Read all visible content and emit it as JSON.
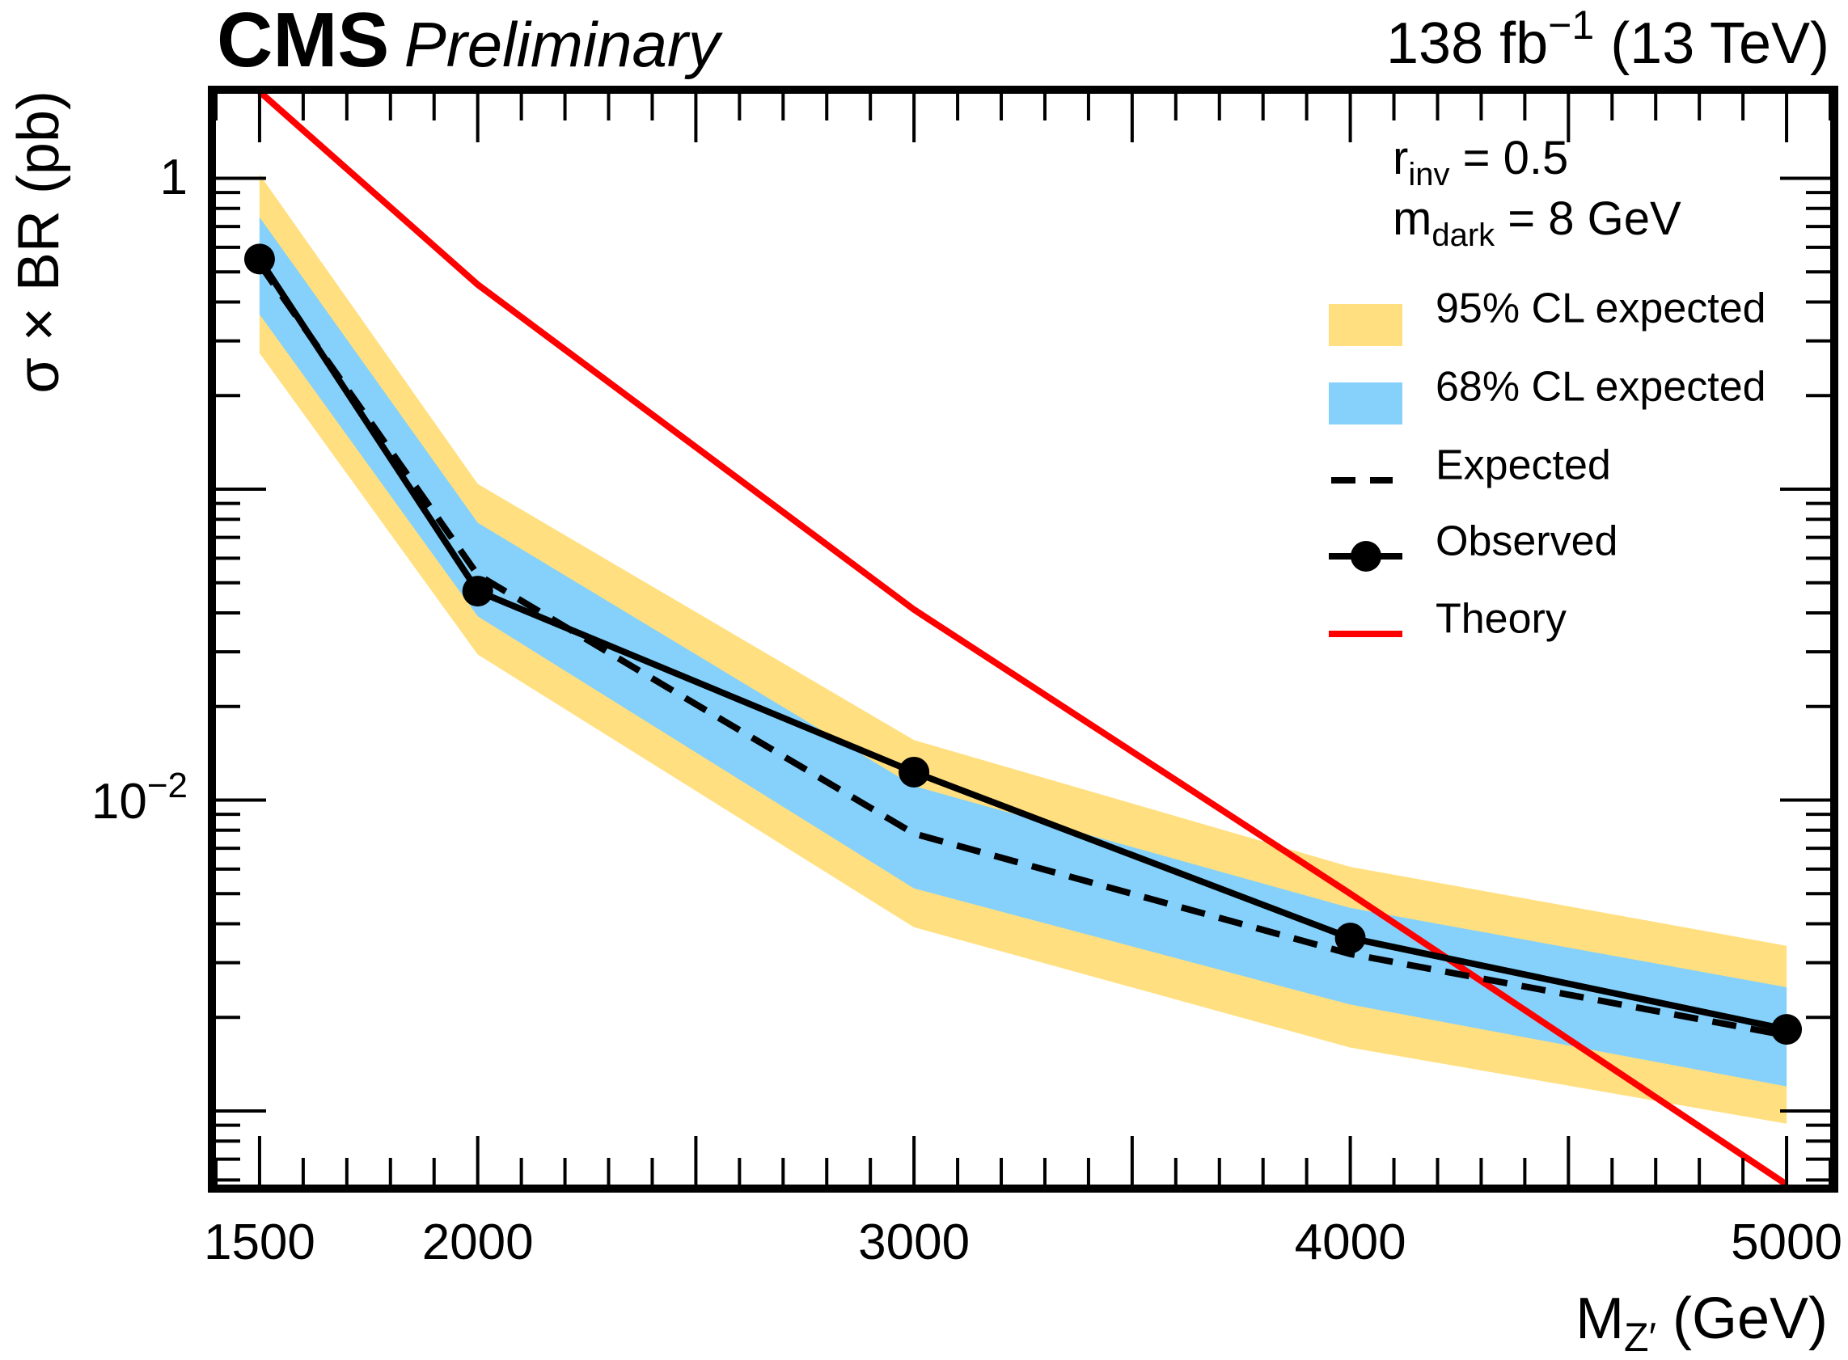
{
  "chart_data": {
    "type": "line",
    "title": "",
    "header_left": {
      "experiment": "CMS",
      "status": "Preliminary"
    },
    "header_right": {
      "lumi_value": "138 fb",
      "lumi_exponent": "−1",
      "energy": " (13 TeV)"
    },
    "xlabel": {
      "main": "M",
      "subscript": "Z′",
      "unit": " (GeV)"
    },
    "ylabel": "σ × BR (pb)",
    "xscale": "linear",
    "yscale": "log",
    "xlim": [
      1400,
      5100
    ],
    "ylim": [
      0.00058,
      1.87
    ],
    "x_ticks": [
      1500,
      2000,
      3000,
      4000,
      5000
    ],
    "x_tick_labels": [
      "1500",
      "2000",
      "3000",
      "4000",
      "5000"
    ],
    "y_tick_labels": [
      {
        "value": 1,
        "base": "1",
        "exponent": ""
      },
      {
        "value": 0.01,
        "base": "10",
        "exponent": "−2"
      }
    ],
    "grid": false,
    "annotations": [
      {
        "main": "r",
        "subscript": "inv",
        "rest": " = 0.5"
      },
      {
        "main": "m",
        "subscript": "dark",
        "rest": " = 8 GeV"
      }
    ],
    "legend_position": "top-right",
    "legend": [
      {
        "key": "band95",
        "label": "95% CL expected"
      },
      {
        "key": "band68",
        "label": "68% CL expected"
      },
      {
        "key": "expected",
        "label": "Expected"
      },
      {
        "key": "observed",
        "label": "Observed"
      },
      {
        "key": "theory",
        "label": "Theory"
      }
    ],
    "x": [
      1500,
      2000,
      3000,
      4000,
      5000
    ],
    "series": [
      {
        "name": "Observed",
        "key": "observed",
        "values": [
          0.55,
          0.047,
          0.0123,
          0.0036,
          0.00183
        ]
      },
      {
        "name": "Expected",
        "key": "expected",
        "values": [
          0.53,
          0.053,
          0.0078,
          0.0032,
          0.00175
        ]
      },
      {
        "name": "68% CL expected (upper)",
        "key": "band68_hi",
        "values": [
          0.75,
          0.078,
          0.0111,
          0.0045,
          0.0025
        ]
      },
      {
        "name": "68% CL expected (lower)",
        "key": "band68_lo",
        "values": [
          0.365,
          0.039,
          0.0052,
          0.0022,
          0.0012
        ]
      },
      {
        "name": "95% CL expected (upper)",
        "key": "band95_hi",
        "values": [
          1.03,
          0.104,
          0.0156,
          0.0061,
          0.0034
        ]
      },
      {
        "name": "95% CL expected (lower)",
        "key": "band95_lo",
        "values": [
          0.274,
          0.0294,
          0.0039,
          0.0016,
          0.00091
        ]
      },
      {
        "name": "Theory",
        "key": "theory",
        "values": [
          1.9,
          0.455,
          0.041,
          0.005,
          0.00058
        ]
      }
    ],
    "colors": {
      "band95": "#FFDF7F",
      "band68": "#85D1FB",
      "observed": "#000000",
      "expected": "#000000",
      "theory": "#FF0000",
      "frame": "#000000"
    }
  }
}
